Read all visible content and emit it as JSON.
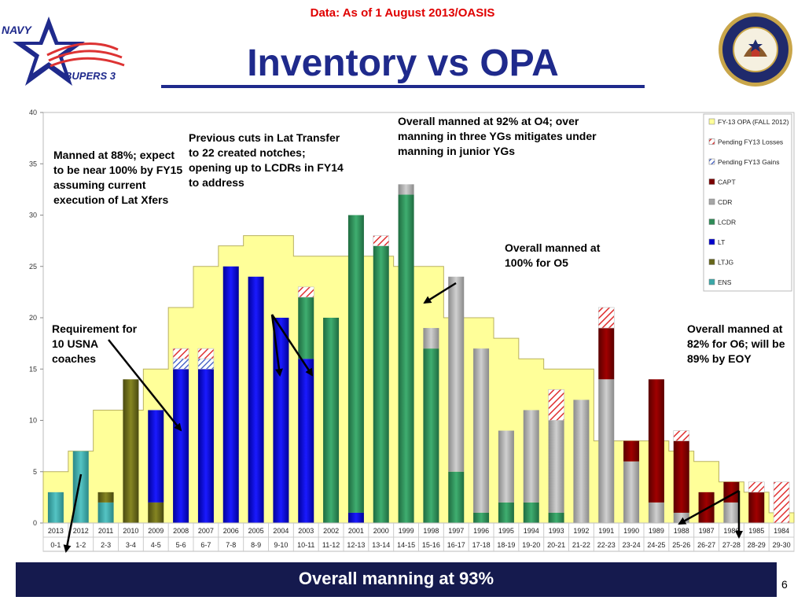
{
  "header": {
    "data_note": "Data: As of 1 August 2013/OASIS",
    "title": "Inventory vs OPA",
    "logo_navy": "NAVY",
    "logo_bupers": "BUPERS 3"
  },
  "footer": {
    "summary": "Overall manning at 93%",
    "page_number": "6"
  },
  "colors": {
    "opa_fill": "#ffff99",
    "opa_stroke": "#b8b060",
    "losses": "#e03030",
    "gains": "#3050c0",
    "CAPT": "#7a0000",
    "CDR": "#a6a6a6",
    "LCDR": "#2e8b57",
    "LT": "#0000cc",
    "LTJG": "#66661a",
    "ENS": "#3aa8a8"
  },
  "annotations": [
    "Manned at 88%; expect to be near 100% by FY15 assuming current execution of Lat Xfers",
    "Previous cuts in Lat Transfer to 22 created notches; opening up to LCDRs in FY14 to address",
    "Overall manned at 92% at O4; over manning in three YGs mitigates under manning in junior YGs",
    "Overall manned at 100% for O5",
    "Requirement for 10 USNA coaches",
    "Overall manned at 82% for O6; will be 89% by EOY"
  ],
  "chart_data": {
    "type": "bar",
    "stacked": true,
    "ylim": [
      0,
      40
    ],
    "yticks": [
      0,
      5,
      10,
      15,
      20,
      25,
      30,
      35,
      40
    ],
    "categories": [
      "2013",
      "2012",
      "2011",
      "2010",
      "2009",
      "2008",
      "2007",
      "2006",
      "2005",
      "2004",
      "2003",
      "2002",
      "2001",
      "2000",
      "1999",
      "1998",
      "1997",
      "1996",
      "1995",
      "1994",
      "1993",
      "1992",
      "1991",
      "1990",
      "1989",
      "1988",
      "1987",
      "1986",
      "1985",
      "1984"
    ],
    "categories2": [
      "0-1",
      "1-2",
      "2-3",
      "3-4",
      "4-5",
      "5-6",
      "6-7",
      "7-8",
      "8-9",
      "9-10",
      "10-11",
      "11-12",
      "12-13",
      "13-14",
      "14-15",
      "15-16",
      "16-17",
      "17-18",
      "18-19",
      "19-20",
      "20-21",
      "21-22",
      "22-23",
      "23-24",
      "24-25",
      "25-26",
      "26-27",
      "27-28",
      "28-29",
      "29-30"
    ],
    "legend_position": "top-right",
    "series": [
      {
        "name": "ENS",
        "values": [
          3,
          7,
          2,
          0,
          0,
          0,
          0,
          0,
          0,
          0,
          0,
          0,
          0,
          0,
          0,
          0,
          0,
          0,
          0,
          0,
          0,
          0,
          0,
          0,
          0,
          0,
          0,
          0,
          0,
          0
        ]
      },
      {
        "name": "LTJG",
        "values": [
          0,
          0,
          1,
          14,
          2,
          0,
          0,
          0,
          0,
          0,
          0,
          0,
          0,
          0,
          0,
          0,
          0,
          0,
          0,
          0,
          0,
          0,
          0,
          0,
          0,
          0,
          0,
          0,
          0,
          0
        ]
      },
      {
        "name": "LT",
        "values": [
          0,
          0,
          0,
          0,
          9,
          15,
          15,
          25,
          24,
          20,
          16,
          0,
          1,
          0,
          0,
          0,
          0,
          0,
          0,
          0,
          0,
          0,
          0,
          0,
          0,
          0,
          0,
          0,
          0,
          0
        ]
      },
      {
        "name": "LCDR",
        "values": [
          0,
          0,
          0,
          0,
          0,
          0,
          0,
          0,
          0,
          0,
          6,
          20,
          29,
          27,
          32,
          17,
          5,
          1,
          2,
          2,
          1,
          0,
          0,
          0,
          0,
          0,
          0,
          0,
          0,
          0
        ]
      },
      {
        "name": "CDR",
        "values": [
          0,
          0,
          0,
          0,
          0,
          0,
          0,
          0,
          0,
          0,
          0,
          0,
          0,
          0,
          1,
          2,
          19,
          16,
          7,
          9,
          9,
          12,
          14,
          6,
          2,
          1,
          0,
          2,
          0,
          0
        ]
      },
      {
        "name": "CAPT",
        "values": [
          0,
          0,
          0,
          0,
          0,
          0,
          0,
          0,
          0,
          0,
          0,
          0,
          0,
          0,
          0,
          0,
          0,
          0,
          0,
          0,
          0,
          0,
          5,
          2,
          12,
          7,
          3,
          2,
          3,
          0
        ]
      },
      {
        "name": "Pending FY13 Gains",
        "values": [
          0,
          0,
          0,
          0,
          0,
          1,
          1,
          0,
          0,
          0,
          0,
          0,
          0,
          0,
          0,
          0,
          0,
          0,
          0,
          0,
          0,
          0,
          0,
          0,
          0,
          0,
          0,
          0,
          0,
          0
        ]
      },
      {
        "name": "Pending FY13 Losses",
        "values": [
          0,
          0,
          0,
          0,
          0,
          1,
          1,
          0,
          0,
          0,
          1,
          0,
          0,
          1,
          0,
          0,
          0,
          0,
          0,
          0,
          3,
          0,
          2,
          0,
          0,
          1,
          0,
          0,
          1,
          4
        ]
      }
    ],
    "opa": {
      "name": "FY-13 OPA (FALL 2012)",
      "values": [
        5,
        7,
        11,
        11,
        15,
        21,
        25,
        27,
        28,
        28,
        26,
        26,
        26,
        26,
        25,
        25,
        20,
        20,
        18,
        16,
        15,
        15,
        8,
        8,
        8,
        7,
        6,
        4,
        3,
        1
      ]
    },
    "legend": [
      "FY-13 OPA (FALL 2012)",
      "Pending FY13 Losses",
      "Pending FY13 Gains",
      "CAPT",
      "CDR",
      "LCDR",
      "LT",
      "LTJG",
      "ENS"
    ]
  }
}
